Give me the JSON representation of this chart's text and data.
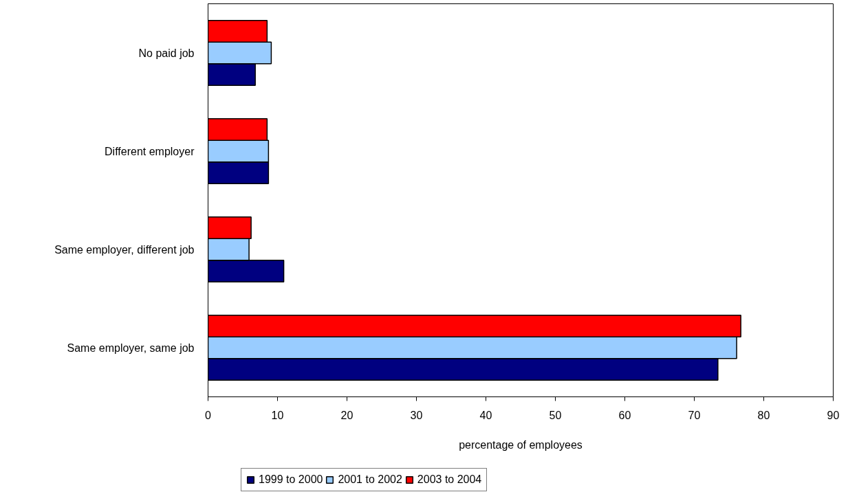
{
  "chart_data": {
    "type": "bar",
    "orientation": "horizontal",
    "xlabel": "percentage of employees",
    "categories": [
      "No paid job",
      "Different employer",
      "Same employer, different job",
      "Same employer, same job"
    ],
    "series": [
      {
        "name": "1999 to 2000",
        "color": "#000080",
        "values": [
          6.8,
          8.7,
          10.9,
          73.4
        ]
      },
      {
        "name": "2001 to 2002",
        "color": "#99ccff",
        "values": [
          9.1,
          8.7,
          5.9,
          76.1
        ]
      },
      {
        "name": "2003 to 2004",
        "color": "#ff0000",
        "values": [
          8.5,
          8.5,
          6.2,
          76.7
        ]
      }
    ],
    "xlim": [
      0,
      90
    ],
    "xticks": [
      0,
      10,
      20,
      30,
      40,
      50,
      60,
      70,
      80,
      90
    ],
    "grid": false,
    "legend": "bottom"
  }
}
